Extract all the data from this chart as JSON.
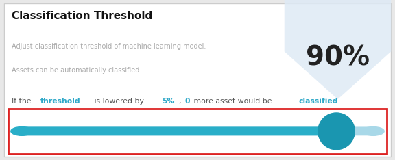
{
  "title": "Classification Threshold",
  "subtitle_line1": "Adjust classification threshold of machine learning model.",
  "subtitle_line2": "Assets can be automatically classified.",
  "info_text_parts": [
    {
      "text": "If the ",
      "bold": false,
      "color": "#555555"
    },
    {
      "text": "threshold",
      "bold": true,
      "color": "#2ea8c8"
    },
    {
      "text": " is lowered by ",
      "bold": false,
      "color": "#555555"
    },
    {
      "text": "5%",
      "bold": true,
      "color": "#2ea8c8"
    },
    {
      "text": ", ",
      "bold": false,
      "color": "#555555"
    },
    {
      "text": "0",
      "bold": true,
      "color": "#2ea8c8"
    },
    {
      "text": " more asset would be ",
      "bold": false,
      "color": "#555555"
    },
    {
      "text": "classified",
      "bold": true,
      "color": "#2ea8c8"
    },
    {
      "text": ".",
      "bold": false,
      "color": "#555555"
    }
  ],
  "percentage": "90%",
  "percentage_color": "#222222",
  "slider_value": 0.895,
  "slider_track_color_left": "#29aec8",
  "slider_track_color_right": "#a8d8e8",
  "slider_thumb_color": "#1a96b0",
  "slider_rect_edge_color": "#dd2222",
  "background_color": "#e8e8e8",
  "panel_color": "#ffffff",
  "chevron_color": "#deeaf5",
  "title_color": "#111111",
  "subtitle_color": "#aaaaaa",
  "info_color_normal": "#555555"
}
